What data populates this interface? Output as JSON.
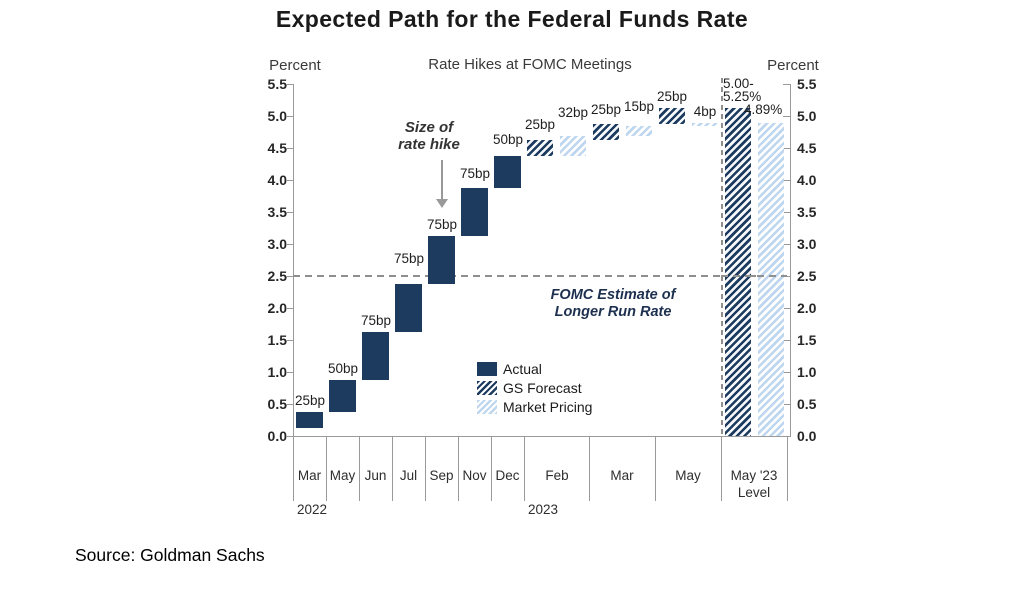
{
  "title": "Expected Path for the Federal Funds Rate",
  "source": "Source: Goldman Sachs",
  "chart_data": {
    "type": "bar",
    "subtype": "waterfall",
    "title": "Rate Hikes at FOMC Meetings",
    "y_axis": {
      "label_left": "Percent",
      "label_right": "Percent",
      "min": 0,
      "max": 5.5,
      "tick_step": 0.5
    },
    "reference_line": {
      "value": 2.5,
      "label": [
        "FOMC Estimate of",
        "Longer Run Rate"
      ]
    },
    "annotation": {
      "lines": [
        "Size of",
        "rate hike"
      ],
      "points_to": "Sep 2022 hike bar"
    },
    "legend": [
      {
        "label": "Actual",
        "style": "solid"
      },
      {
        "label": "GS Forecast",
        "style": "hatch-dark"
      },
      {
        "label": "Market Pricing",
        "style": "hatch-light"
      }
    ],
    "colors": {
      "navy": "#1d3a5f",
      "light_blue": "#bed7ee",
      "axis_gray": "#9a9a9a",
      "dash_gray": "#8f8f8f"
    },
    "x_groups": [
      {
        "label": "Mar",
        "year": "2022",
        "span": 1,
        "bars": [
          {
            "series": "actual",
            "from": 0.125,
            "to": 0.375,
            "label": "25bp"
          }
        ]
      },
      {
        "label": "May",
        "span": 1,
        "bars": [
          {
            "series": "actual",
            "from": 0.375,
            "to": 0.875,
            "label": "50bp"
          }
        ]
      },
      {
        "label": "Jun",
        "span": 1,
        "bars": [
          {
            "series": "actual",
            "from": 0.875,
            "to": 1.625,
            "label": "75bp"
          }
        ]
      },
      {
        "label": "Jul",
        "span": 1,
        "bars": [
          {
            "series": "actual",
            "from": 1.625,
            "to": 2.375,
            "label": "75bp",
            "label_dy": 14
          }
        ]
      },
      {
        "label": "Sep",
        "span": 1,
        "bars": [
          {
            "series": "actual",
            "from": 2.375,
            "to": 3.125,
            "label": "75bp"
          }
        ]
      },
      {
        "label": "Nov",
        "span": 1,
        "bars": [
          {
            "series": "actual",
            "from": 3.125,
            "to": 3.875,
            "label": "75bp",
            "label_dy": 3
          }
        ]
      },
      {
        "label": "Dec",
        "span": 1,
        "bars": [
          {
            "series": "actual",
            "from": 3.875,
            "to": 4.375,
            "label": "50bp",
            "label_dy": 5
          }
        ]
      },
      {
        "label": "Feb",
        "year": "2023",
        "span": 2,
        "bars": [
          {
            "series": "gs_forecast",
            "from": 4.375,
            "to": 4.625,
            "label": "25bp",
            "label_dy": 4
          },
          {
            "series": "market",
            "from": 4.375,
            "to": 4.695,
            "label": "32bp",
            "label_dy": 12
          }
        ]
      },
      {
        "label": "Mar",
        "span": 2,
        "bars": [
          {
            "series": "gs_forecast",
            "from": 4.625,
            "to": 4.875,
            "label": "25bp",
            "label_dy": 3
          },
          {
            "series": "market",
            "from": 4.695,
            "to": 4.845,
            "label": "15bp",
            "label_dy": 8
          }
        ]
      },
      {
        "label": "May",
        "span": 2,
        "bars": [
          {
            "series": "gs_forecast",
            "from": 4.875,
            "to": 5.125,
            "label": "25bp"
          },
          {
            "series": "market",
            "from": 4.845,
            "to": 4.885,
            "label": "4bp"
          }
        ]
      },
      {
        "label": "May '23",
        "label2": "Level",
        "span": 2,
        "separator": true,
        "bars": [
          {
            "series": "gs_forecast",
            "from": 0,
            "to": 5.125,
            "label_lines": [
              "5.00-",
              "5.25%"
            ],
            "label_align": "left"
          },
          {
            "series": "market",
            "from": 0,
            "to": 4.89,
            "label": "4.89%",
            "label_align": "right"
          }
        ]
      }
    ]
  }
}
